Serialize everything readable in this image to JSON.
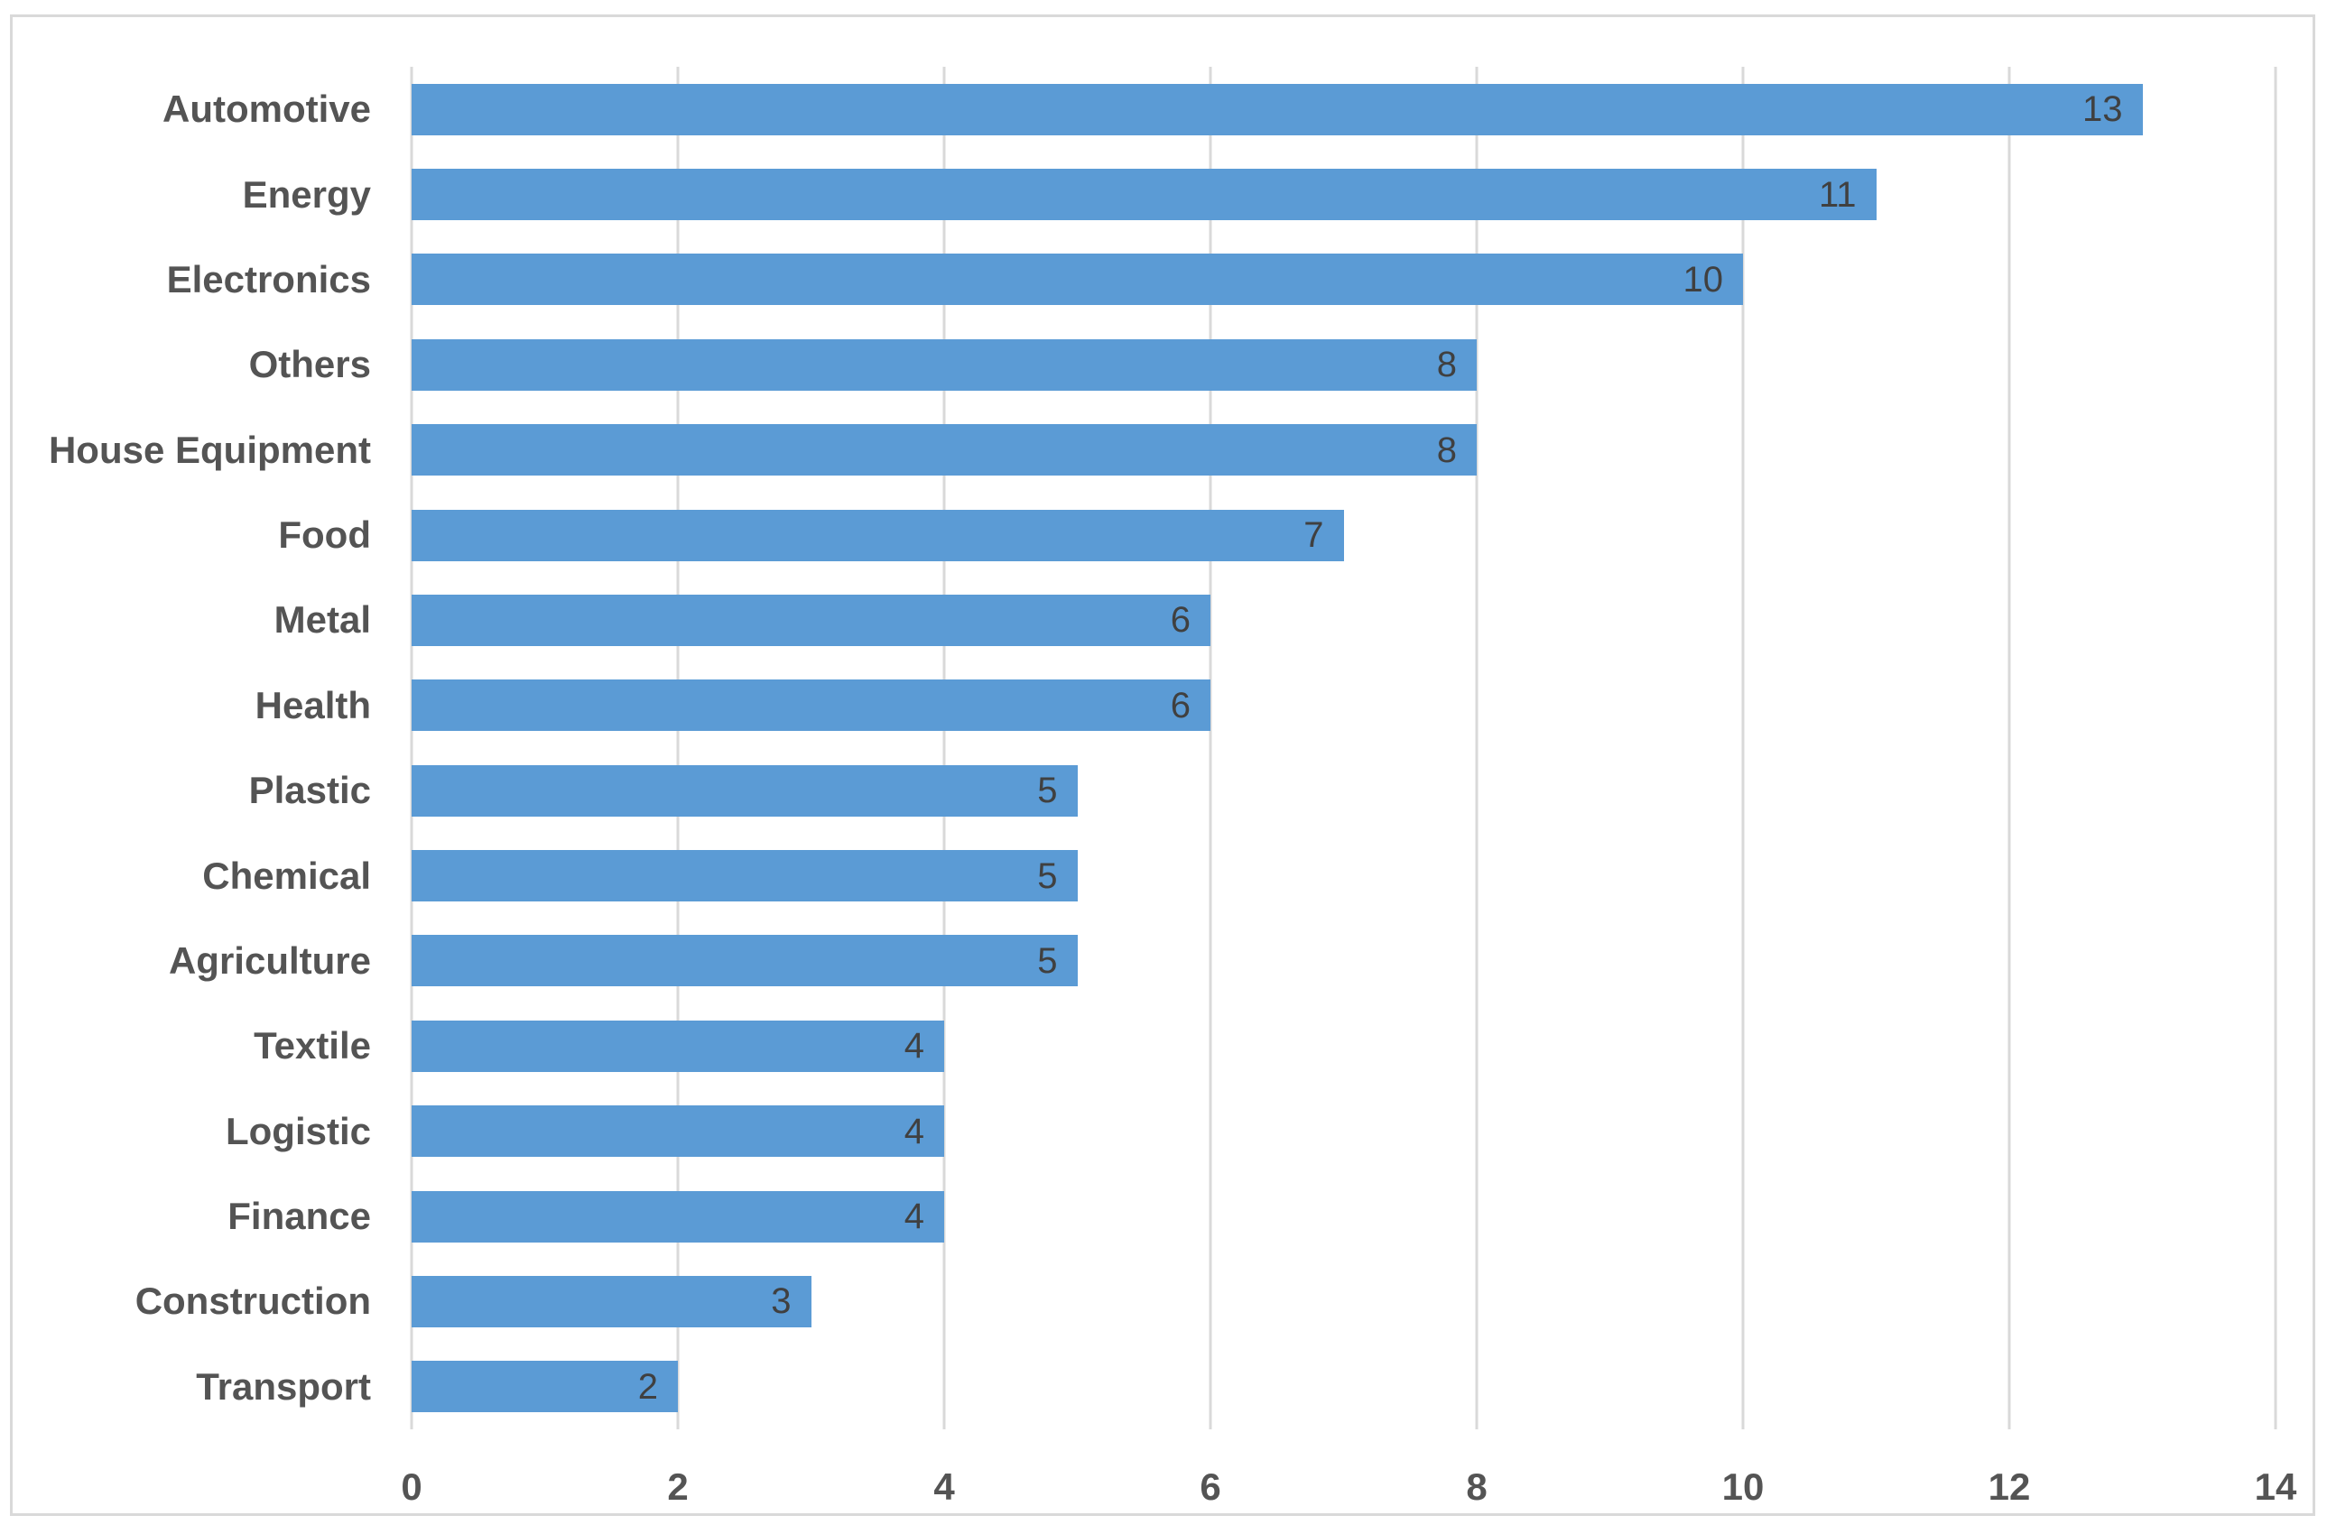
{
  "chart_data": {
    "type": "bar",
    "orientation": "horizontal",
    "title": "",
    "xlabel": "",
    "ylabel": "",
    "categories": [
      "Automotive",
      "Energy",
      "Electronics",
      "Others",
      "House Equipment",
      "Food",
      "Metal",
      "Health",
      "Plastic",
      "Chemical",
      "Agriculture",
      "Textile",
      "Logistic",
      "Finance",
      "Construction",
      "Transport"
    ],
    "values": [
      13,
      11,
      10,
      8,
      8,
      7,
      6,
      6,
      5,
      5,
      5,
      4,
      4,
      4,
      3,
      2
    ],
    "xlim": [
      0,
      14
    ],
    "x_ticks": [
      "0",
      "2",
      "4",
      "6",
      "8",
      "10",
      "12",
      "14"
    ],
    "x_tick_values": [
      0,
      2,
      4,
      6,
      8,
      10,
      12,
      14
    ],
    "grid": "vertical-gridlines-on",
    "legend": "none",
    "data_label_position": "inside-end",
    "colors": {
      "bar": "#5B9BD5",
      "gridline": "#D9D9D9",
      "border": "#D9D9D9",
      "category_text": "#545454",
      "tick_text": "#545454",
      "data_label_text": "#404040",
      "background": "#FFFFFF"
    }
  }
}
